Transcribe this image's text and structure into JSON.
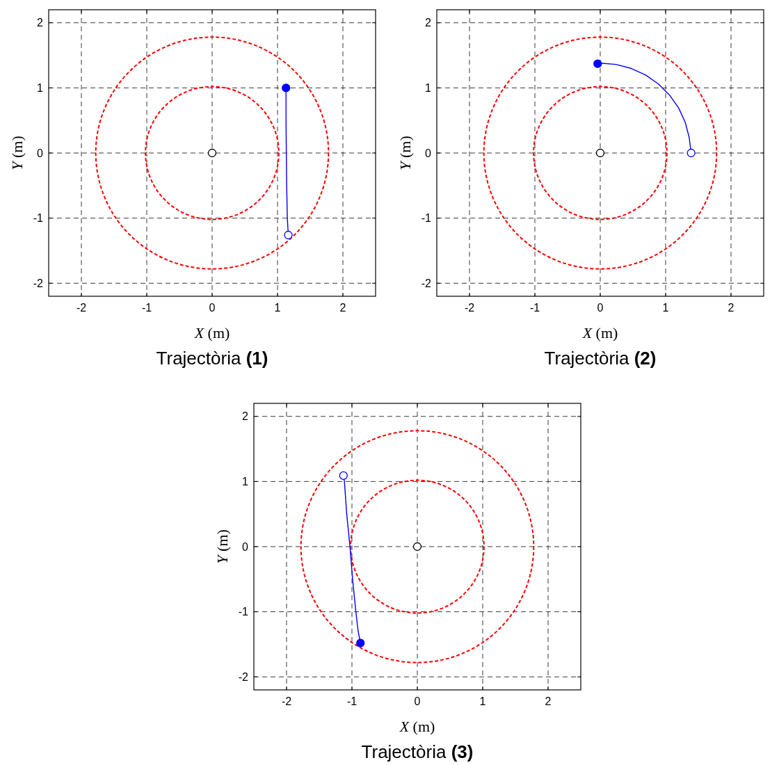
{
  "chart_data": [
    {
      "type": "line",
      "title": "Trajectòria (1)",
      "xlabel": "X (m)",
      "ylabel": "Y (m)",
      "xlim": [
        -2.5,
        2.5
      ],
      "ylim": [
        -2.2,
        2.2
      ],
      "xticks": [
        -2,
        -1,
        0,
        1,
        2
      ],
      "yticks": [
        -2,
        -1,
        0,
        1,
        2
      ],
      "grid": true,
      "series": [
        {
          "type": "scatter",
          "color": "#000000",
          "marker": "circle",
          "x": [
            0
          ],
          "values": [
            0
          ]
        },
        {
          "color": "#0000ff",
          "line_style": "solid",
          "x": [
            1.13,
            1.13,
            1.135,
            1.14,
            1.15,
            1.165
          ],
          "values": [
            1.0,
            0.5,
            0,
            -0.5,
            -1.0,
            -1.26
          ]
        },
        {
          "type": "scatter",
          "color": "#0000ff",
          "marker": "circle",
          "x": [
            1.13
          ],
          "values": [
            1.0
          ]
        },
        {
          "type": "scatter",
          "color": "#0000ff",
          "marker": "circle",
          "x": [
            1.165
          ],
          "values": [
            -1.26
          ]
        }
      ]
    },
    {
      "type": "line",
      "title": "Trajectòria (2)",
      "xlabel": "X (m)",
      "ylabel": "Y (m)",
      "xlim": [
        -2.5,
        2.5
      ],
      "ylim": [
        -2.2,
        2.2
      ],
      "xticks": [
        -2,
        -1,
        0,
        1,
        2
      ],
      "yticks": [
        -2,
        -1,
        0,
        1,
        2
      ],
      "grid": true,
      "series": [
        {
          "type": "scatter",
          "color": "#000000",
          "marker": "circle",
          "x": [
            0
          ],
          "values": [
            0
          ]
        },
        {
          "color": "#0000ff",
          "line_style": "solid",
          "x": [
            -0.04,
            0,
            0.24,
            0.47,
            0.69,
            0.89,
            1.06,
            1.2,
            1.3,
            1.36,
            1.39
          ],
          "values": [
            1.37,
            1.38,
            1.36,
            1.3,
            1.2,
            1.06,
            0.89,
            0.69,
            0.47,
            0.24,
            0
          ]
        },
        {
          "type": "scatter",
          "color": "#0000ff",
          "marker": "circle",
          "x": [
            -0.04
          ],
          "values": [
            1.37
          ]
        },
        {
          "type": "scatter",
          "color": "#0000ff",
          "marker": "circle",
          "x": [
            1.39
          ],
          "values": [
            0
          ]
        }
      ]
    },
    {
      "type": "line",
      "title": "Trajectòria (3)",
      "xlabel": "X (m)",
      "ylabel": "Y (m)",
      "xlim": [
        -2.5,
        2.5
      ],
      "ylim": [
        -2.2,
        2.2
      ],
      "xticks": [
        -2,
        -1,
        0,
        1,
        2
      ],
      "yticks": [
        -2,
        -1,
        0,
        1,
        2
      ],
      "grid": true,
      "series": [
        {
          "type": "scatter",
          "color": "#000000",
          "marker": "circle",
          "x": [
            0
          ],
          "values": [
            0
          ]
        },
        {
          "color": "#0000ff",
          "line_style": "solid",
          "x": [
            -0.87,
            -0.905,
            -0.94,
            -0.99,
            -1.03,
            -1.08,
            -1.115,
            -1.13
          ],
          "values": [
            -1.48,
            -1.3,
            -1.0,
            -0.5,
            0,
            0.5,
            1.0,
            1.09
          ]
        },
        {
          "type": "scatter",
          "color": "#0000ff",
          "marker": "circle",
          "x": [
            -0.87
          ],
          "values": [
            -1.48
          ]
        },
        {
          "type": "scatter",
          "color": "#0000ff",
          "marker": "circle",
          "x": [
            -1.13
          ],
          "values": [
            1.09
          ]
        }
      ]
    }
  ]
}
